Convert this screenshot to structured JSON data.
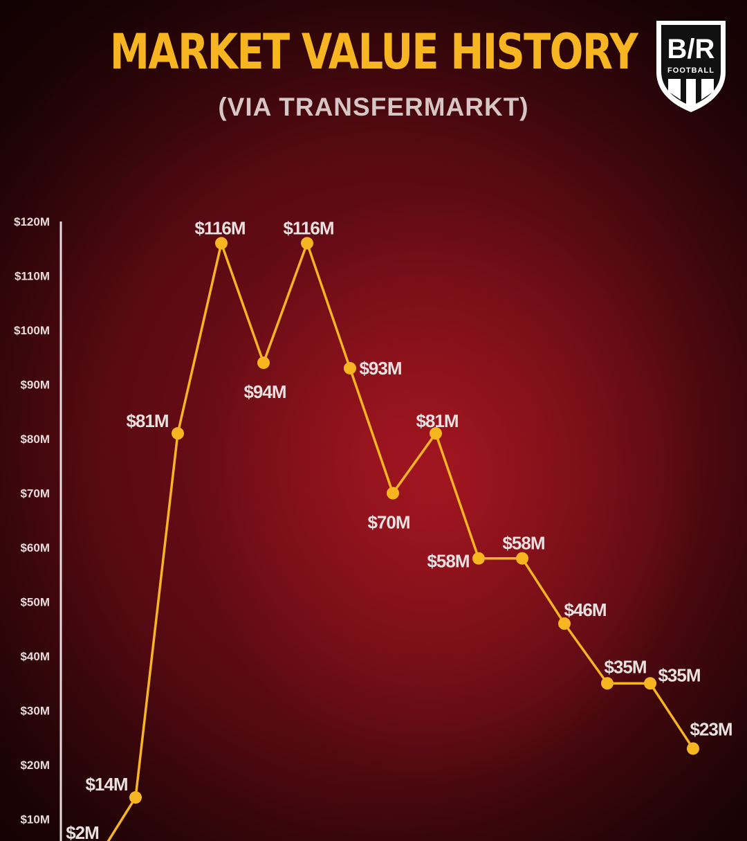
{
  "header": {
    "title": "MARKET VALUE HISTORY",
    "subtitle": "(VIA TRANSFERMARKT)"
  },
  "logo": {
    "text_main": "B/R",
    "text_sub": "FOOTBALL"
  },
  "colors": {
    "line": "#f7b522",
    "title": "#f7b522",
    "axis": "#e6dada",
    "background": "#5a0a12"
  },
  "chart_data": {
    "type": "line",
    "title": "MARKET VALUE HISTORY",
    "subtitle": "(VIA TRANSFERMARKT)",
    "xlabel": "",
    "ylabel": "",
    "ylim": [
      0,
      120
    ],
    "yticks": [
      120,
      110,
      100,
      90,
      80,
      70,
      60,
      50,
      40,
      30,
      20,
      10
    ],
    "ytick_labels": [
      "$120M",
      "$110M",
      "$100M",
      "$90M",
      "$80M",
      "$70M",
      "$60M",
      "$50M",
      "$40M",
      "$30M",
      "$20M",
      "$10M"
    ],
    "grid": false,
    "legend": "none",
    "series": [
      {
        "values": [
          2,
          14,
          81,
          116,
          94,
          116,
          93,
          70,
          81,
          58,
          58,
          46,
          35,
          35,
          23
        ],
        "labels": [
          "$2M",
          "$14M",
          "$81M",
          "$116M",
          "$94M",
          "$116M",
          "$93M",
          "$70M",
          "$81M",
          "$58M",
          "$58M",
          "$46M",
          "$35M",
          "$35M",
          "$23M"
        ]
      }
    ]
  }
}
